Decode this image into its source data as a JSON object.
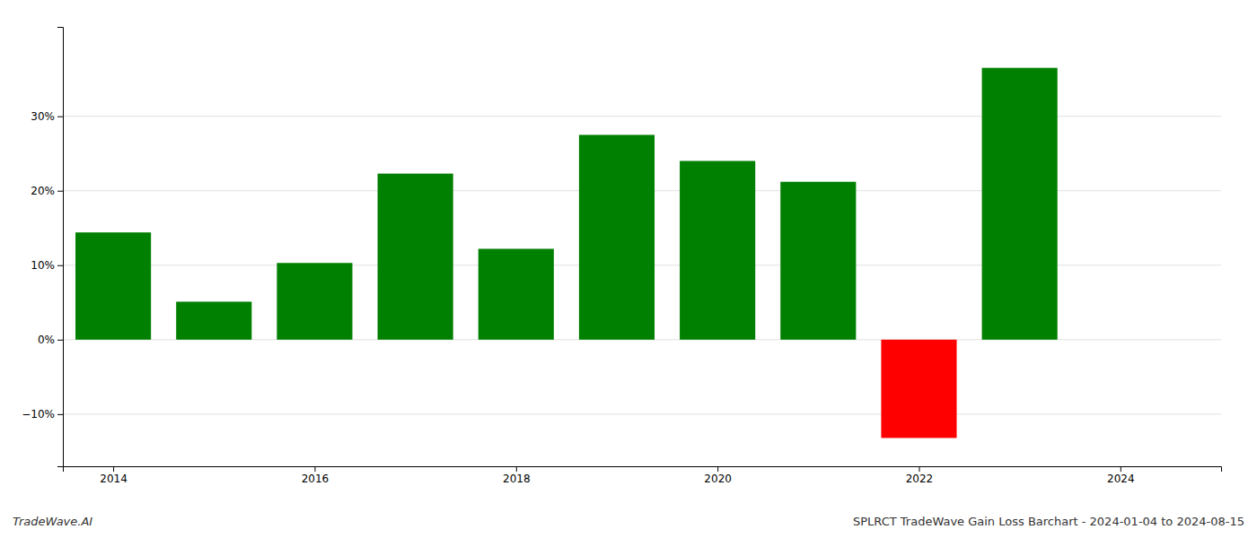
{
  "chart_data": {
    "type": "bar",
    "title": "SPLRCT TradeWave Gain Loss Barchart - 2024-01-04 to 2024-08-15",
    "annotations": [
      "TradeWave.AI"
    ],
    "x": [
      2014,
      2015,
      2016,
      2017,
      2018,
      2019,
      2020,
      2021,
      2022,
      2023
    ],
    "values": [
      14.4,
      5.1,
      10.3,
      22.3,
      12.2,
      27.5,
      24.0,
      21.2,
      -13.2,
      36.5
    ],
    "colors": [
      "#008000",
      "#008000",
      "#008000",
      "#008000",
      "#008000",
      "#008000",
      "#008000",
      "#008000",
      "#ff0000",
      "#008000"
    ],
    "xlim": [
      2013.5,
      2025.0
    ],
    "xticks": [
      2014,
      2016,
      2018,
      2020,
      2022,
      2024
    ],
    "ylim": [
      -17,
      42
    ],
    "yticks": [
      {
        "value": -10,
        "label": "−10%"
      },
      {
        "value": 0,
        "label": "0%"
      },
      {
        "value": 10,
        "label": "10%"
      },
      {
        "value": 20,
        "label": "20%"
      },
      {
        "value": 30,
        "label": "30%"
      }
    ],
    "grid": true
  }
}
